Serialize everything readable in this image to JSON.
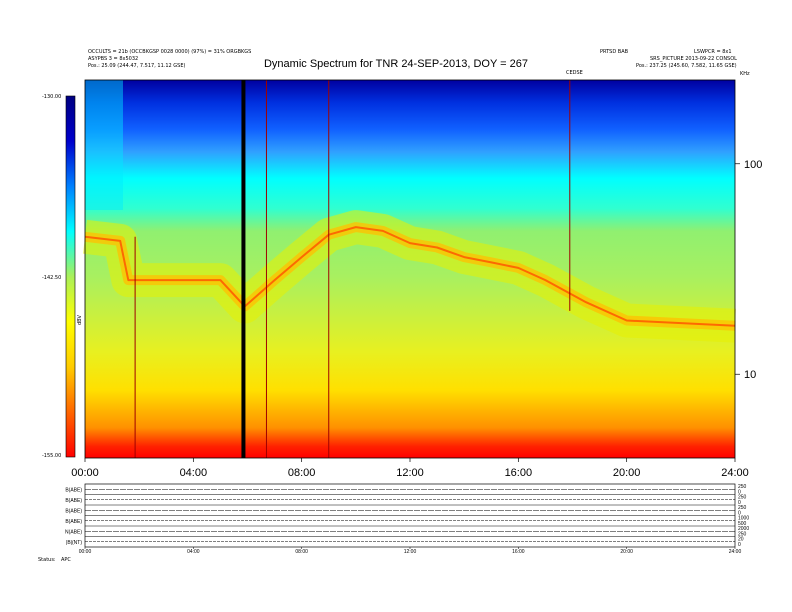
{
  "header": {
    "left_lines": [
      "OCCULTS = 21b (OCCBKGSP 0028 0000) (97%) = 31% ORGBKGS",
      "ASYPBS 3 = 8x5032"
    ],
    "left_pos": "Pos.:   25.09 (244.47, 7.517, 11.12 GSE)",
    "right_top_left": "PRTSD BAB",
    "right_top_right": "LSWPCR = 8x1",
    "right_line2": "SRS_PICTURE  2013-09-22  CONSOL",
    "right_pos": "Pos.:   237.25 (245.60, 7.582, 11.65 GSE)",
    "title": "Dynamic Spectrum for TNR 24-SEP-2013, DOY = 267",
    "marker_label": "CEDSE"
  },
  "colorbar": {
    "top_label": "-130.00",
    "mid_label": "-142.50",
    "bottom_label": "-155.00",
    "unit": "dBV",
    "colors": [
      "#ff0000",
      "#ff6600",
      "#ffcc00",
      "#ffff00",
      "#aaf05a",
      "#00ffff",
      "#0080ff",
      "#0000cc",
      "#000080"
    ]
  },
  "chart_data": {
    "type": "heatmap",
    "title": "Dynamic Spectrum for TNR 24-SEP-2013, DOY = 267",
    "x_axis": {
      "range": [
        0,
        24
      ],
      "ticks": [
        "00:00",
        "04:00",
        "08:00",
        "12:00",
        "16:00",
        "20:00",
        "24:00"
      ],
      "label": ""
    },
    "y_axis": {
      "scale": "log",
      "range_khz": [
        4,
        250
      ],
      "ticks": [
        "100",
        "10"
      ],
      "top_label": "KHz"
    },
    "colorbar_range_dbv": [
      -155.0,
      -130.0
    ],
    "emission_band_center_khz": [
      {
        "x": 0,
        "f": 45
      },
      {
        "x": 1.3,
        "f": 43
      },
      {
        "x": 1.6,
        "f": 28
      },
      {
        "x": 5,
        "f": 28
      },
      {
        "x": 5.9,
        "f": 21
      },
      {
        "x": 7,
        "f": 28
      },
      {
        "x": 8,
        "f": 36
      },
      {
        "x": 9,
        "f": 46
      },
      {
        "x": 10,
        "f": 50
      },
      {
        "x": 11,
        "f": 48
      },
      {
        "x": 12,
        "f": 42
      },
      {
        "x": 13,
        "f": 40
      },
      {
        "x": 14,
        "f": 36
      },
      {
        "x": 15,
        "f": 34
      },
      {
        "x": 16,
        "f": 32
      },
      {
        "x": 17,
        "f": 28
      },
      {
        "x": 18.5,
        "f": 22
      },
      {
        "x": 20,
        "f": 18
      },
      {
        "x": 24,
        "f": 17
      }
    ],
    "vertical_lines_hours": [
      1.85,
      5.85,
      6.7,
      9.0,
      17.9
    ],
    "bottom_panel": {
      "ticks": [
        "00:00",
        "04:00",
        "08:00",
        "12:00",
        "16:00",
        "20:00",
        "24:00"
      ],
      "rows": [
        "B(ABE)",
        "B(ABE)",
        "B(ABE)",
        "B(ABE)",
        "N(ABE)",
        "|B|(NT)"
      ],
      "right_values": [
        [
          "250",
          "0"
        ],
        [
          "250",
          "0"
        ],
        [
          "250",
          "0"
        ],
        [
          "1000",
          "500"
        ],
        [
          "2000",
          "250"
        ],
        [
          "20",
          "0"
        ]
      ],
      "footer_labels": [
        "Status:",
        "APC"
      ]
    }
  }
}
